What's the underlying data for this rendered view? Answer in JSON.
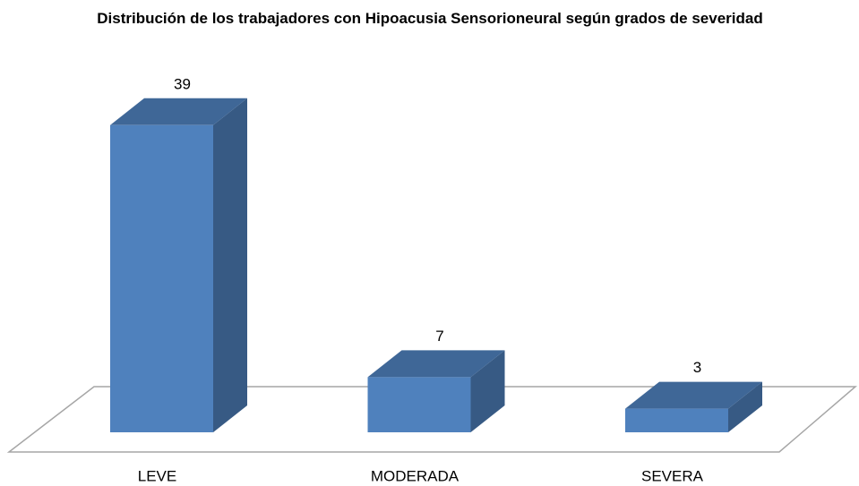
{
  "chart_data": {
    "type": "bar3d",
    "title": "Distribución de los trabajadores con Hipoacusia Sensorioneural según grados de severidad",
    "categories": [
      "LEVE",
      "MODERADA",
      "SEVERA"
    ],
    "values": [
      39,
      7,
      3
    ],
    "color": "#4f81bd"
  }
}
